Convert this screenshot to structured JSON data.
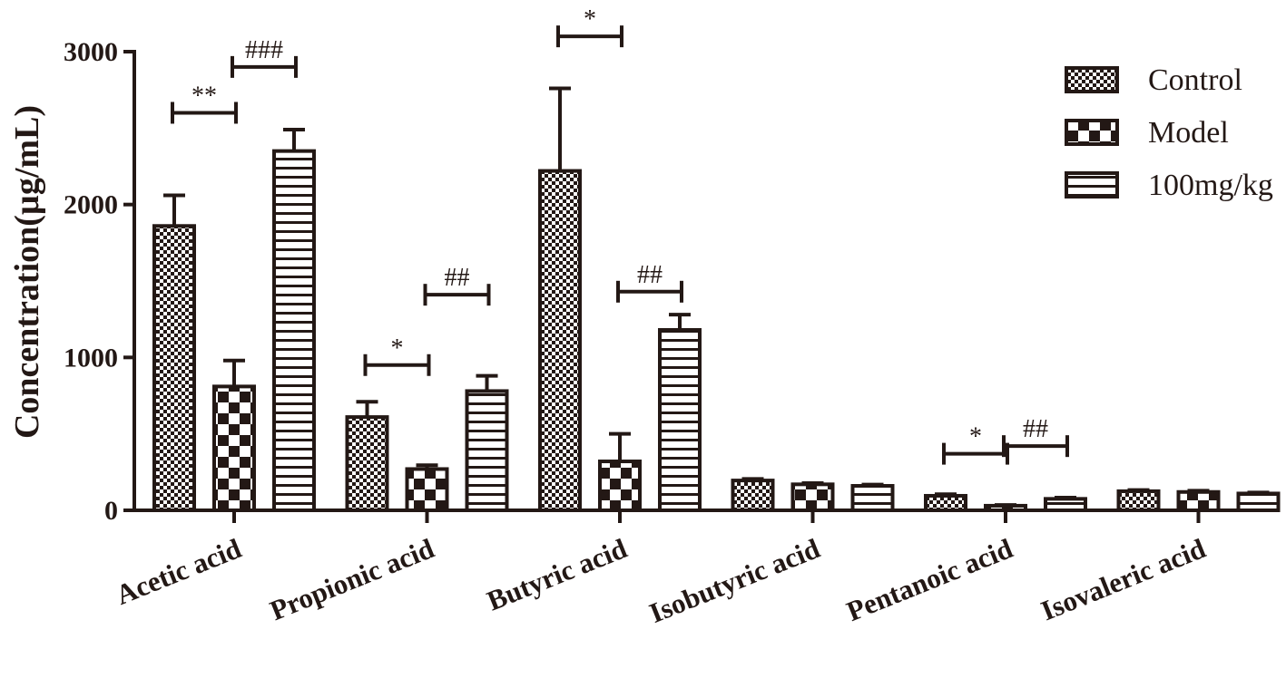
{
  "chart_data": {
    "type": "bar",
    "title": "",
    "xlabel": "",
    "ylabel": "Concentration(µg/mL)",
    "ylim": [
      0,
      3000
    ],
    "yticks": [
      0,
      1000,
      2000,
      3000
    ],
    "grid": false,
    "legend_position": "top-right",
    "categories": [
      "Acetic acid",
      "Propionic acid",
      "Butyric acid",
      "Isobutyric acid",
      "Pentanoic acid",
      "Isovaleric acid"
    ],
    "series": [
      {
        "name": "Control",
        "pattern": "checker-fine",
        "values": [
          1860,
          610,
          2220,
          195,
          95,
          125
        ],
        "errors": [
          200,
          100,
          540,
          10,
          10,
          8
        ]
      },
      {
        "name": "Model",
        "pattern": "checker-coarse",
        "values": [
          810,
          270,
          320,
          170,
          30,
          120
        ],
        "errors": [
          170,
          25,
          180,
          8,
          5,
          8
        ]
      },
      {
        "name": "100mg/kg",
        "pattern": "horizontal-stripes",
        "values": [
          2350,
          780,
          1180,
          160,
          75,
          110
        ],
        "errors": [
          140,
          100,
          100,
          8,
          8,
          6
        ]
      }
    ],
    "annotations": [
      {
        "category": "Acetic acid",
        "between": [
          "Control",
          "Model"
        ],
        "text": "**",
        "y": 2600
      },
      {
        "category": "Acetic acid",
        "between": [
          "Model",
          "100mg/kg"
        ],
        "text": "###",
        "y": 2900
      },
      {
        "category": "Propionic acid",
        "between": [
          "Control",
          "Model"
        ],
        "text": "*",
        "y": 950
      },
      {
        "category": "Propionic acid",
        "between": [
          "Model",
          "100mg/kg"
        ],
        "text": "##",
        "y": 1410
      },
      {
        "category": "Butyric acid",
        "between": [
          "Control",
          "Model"
        ],
        "text": "*",
        "y": 3100
      },
      {
        "category": "Butyric acid",
        "between": [
          "Model",
          "100mg/kg"
        ],
        "text": "##",
        "y": 1430
      },
      {
        "category": "Pentanoic acid",
        "between": [
          "Control",
          "Model"
        ],
        "text": "*",
        "y": 370
      },
      {
        "category": "Pentanoic acid",
        "between": [
          "Model",
          "100mg/kg"
        ],
        "text": "##",
        "y": 420
      }
    ],
    "colors": {
      "ink": "#231815",
      "background": "#ffffff"
    }
  }
}
